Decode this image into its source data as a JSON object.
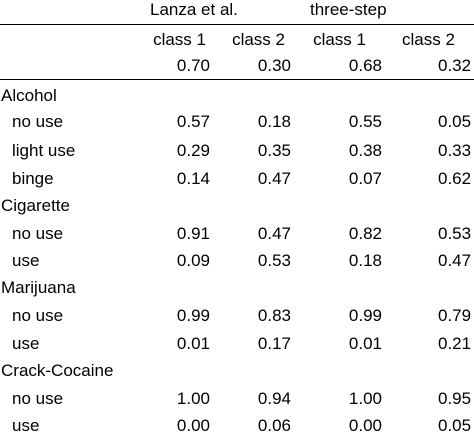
{
  "table": {
    "group_headers": [
      "Lanza et al.",
      "three-step"
    ],
    "class_headers": [
      "class 1",
      "class 2",
      "class 1",
      "class 2"
    ],
    "class_sizes": [
      "0.70",
      "0.30",
      "0.68",
      "0.32"
    ],
    "sections": [
      {
        "name": "Alcohol",
        "rows": [
          {
            "label": "no use",
            "values": [
              "0.57",
              "0.18",
              "0.55",
              "0.05"
            ]
          },
          {
            "label": "light use",
            "values": [
              "0.29",
              "0.35",
              "0.38",
              "0.33"
            ]
          },
          {
            "label": "binge",
            "values": [
              "0.14",
              "0.47",
              "0.07",
              "0.62"
            ]
          }
        ]
      },
      {
        "name": "Cigarette",
        "rows": [
          {
            "label": "no use",
            "values": [
              "0.91",
              "0.47",
              "0.82",
              "0.53"
            ]
          },
          {
            "label": "use",
            "values": [
              "0.09",
              "0.53",
              "0.18",
              "0.47"
            ]
          }
        ]
      },
      {
        "name": "Marijuana",
        "rows": [
          {
            "label": "no use",
            "values": [
              "0.99",
              "0.83",
              "0.99",
              "0.79"
            ]
          },
          {
            "label": "use",
            "values": [
              "0.01",
              "0.17",
              "0.01",
              "0.21"
            ]
          }
        ]
      },
      {
        "name": "Crack-Cocaine",
        "rows": [
          {
            "label": "no use",
            "values": [
              "1.00",
              "0.94",
              "1.00",
              "0.95"
            ]
          },
          {
            "label": "use",
            "values": [
              "0.00",
              "0.06",
              "0.00",
              "0.05"
            ]
          }
        ]
      }
    ]
  }
}
